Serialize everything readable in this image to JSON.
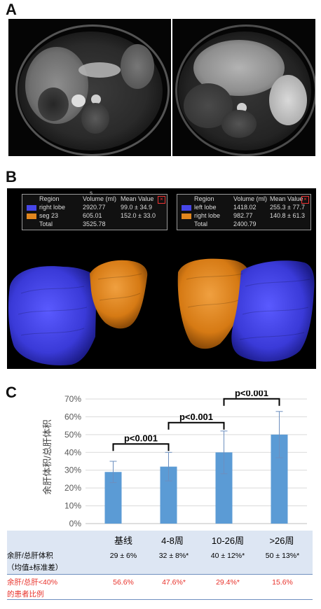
{
  "panels": {
    "a": "A",
    "b": "B",
    "c": "C"
  },
  "panel_b": {
    "legend_left": {
      "mark": "s",
      "header": [
        "Region",
        "Volume (ml)",
        "Mean Value"
      ],
      "rows": [
        {
          "region": "right lobe",
          "volume": "2920.77",
          "mean": "99.0 ± 34.9",
          "color": "#4646e8"
        },
        {
          "region": "seg 23",
          "volume": "605.01",
          "mean": "152.0 ± 33.0",
          "color": "#e0861e"
        }
      ],
      "total_label": "Total",
      "total_value": "3525.78"
    },
    "legend_right": {
      "header": [
        "Region",
        "Volume (ml)",
        "Mean Value"
      ],
      "rows": [
        {
          "region": "left lobe",
          "volume": "1418.02",
          "mean": "255.3 ± 77.7",
          "color": "#4646e8"
        },
        {
          "region": "right lobe",
          "volume": "982.77",
          "mean": "140.8 ± 61.3",
          "color": "#e0861e"
        }
      ],
      "total_label": "Total",
      "total_value": "2400.79"
    }
  },
  "chart_data": {
    "type": "bar",
    "categories": [
      "基线",
      "4-8周",
      "10-26周",
      ">26周"
    ],
    "values": [
      29,
      32,
      40,
      50
    ],
    "errors": [
      6,
      8,
      12,
      13
    ],
    "ylabel": "余肝体积/总肝体积",
    "ylim": [
      0,
      70
    ],
    "yticks": [
      "0%",
      "10%",
      "20%",
      "30%",
      "40%",
      "50%",
      "60%",
      "70%"
    ],
    "bar_color": "#5b9bd5",
    "brackets": [
      {
        "from": 0,
        "to": 1,
        "label": "p<0.001"
      },
      {
        "from": 1,
        "to": 2,
        "label": "p<0.001"
      },
      {
        "from": 2,
        "to": 3,
        "label": "p<0.001"
      }
    ]
  },
  "table": {
    "row1_label_line1": "余肝/总肝体积",
    "row1_label_line2": "（均值±标准差）",
    "row1_values": [
      "29 ± 6%",
      "32 ± 8%*",
      "40 ± 12%*",
      "50 ± 13%*"
    ],
    "row2_label_line1": "余肝/总肝<40%",
    "row2_label_line2": "的患者比例",
    "row2_values": [
      "56.6%",
      "47.6%*",
      "29.4%*",
      "15.6%"
    ],
    "red_color": "#e8312a"
  }
}
